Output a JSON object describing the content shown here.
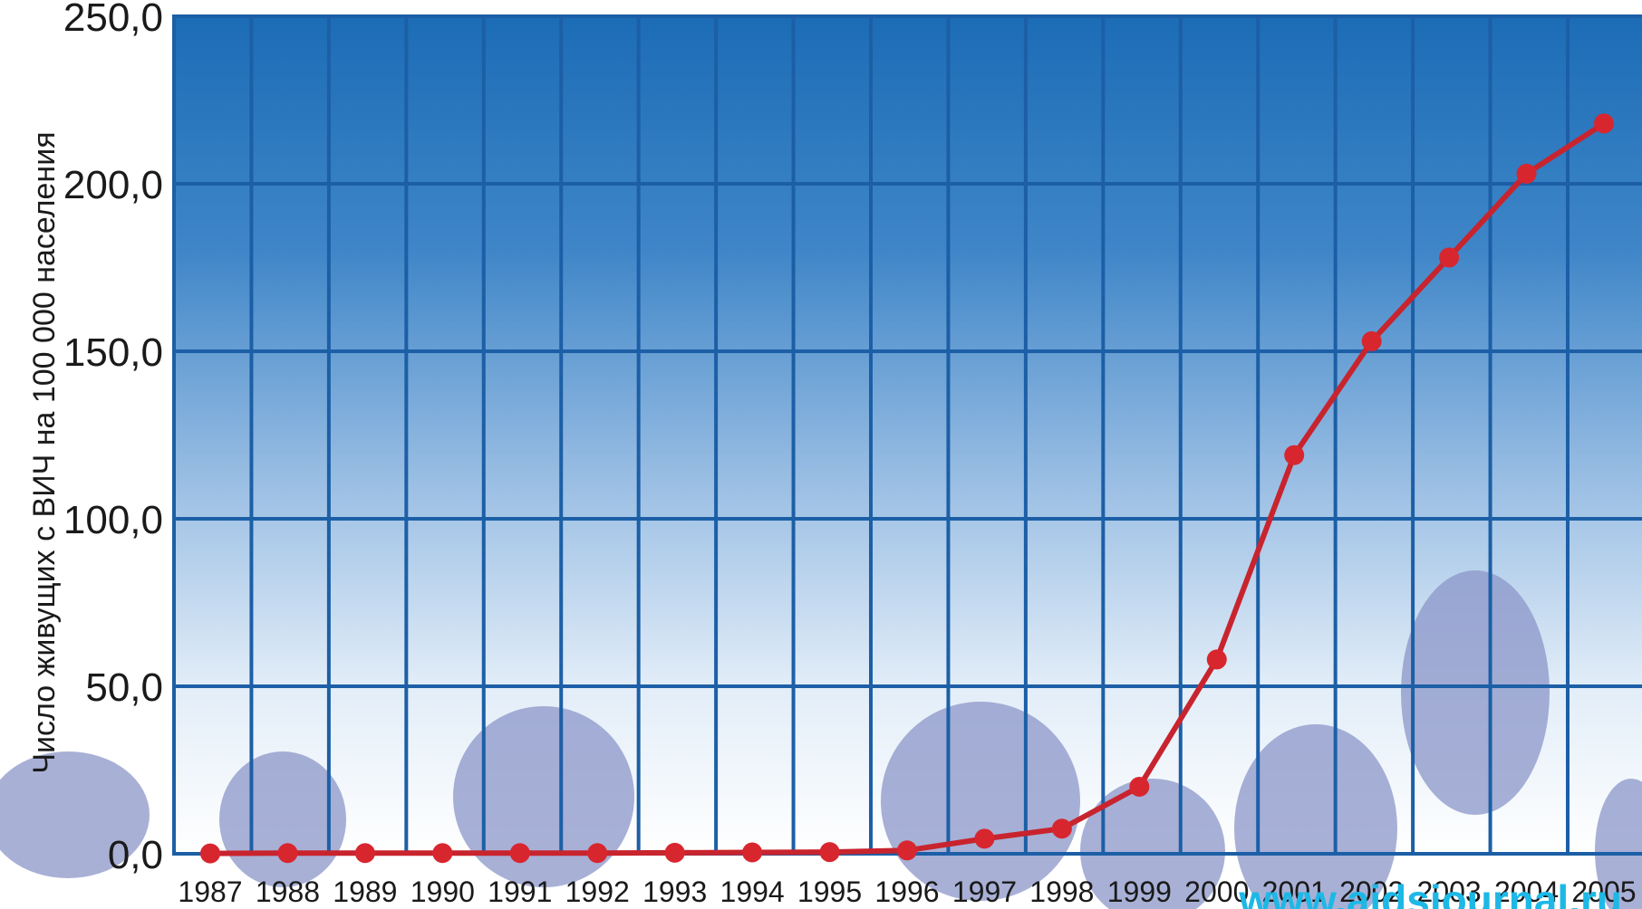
{
  "chart_data": {
    "type": "line",
    "title": "",
    "xlabel": "",
    "ylabel": "Число живущих с ВИЧ на 100 000 населения",
    "ylim": [
      0,
      250
    ],
    "yticks": [
      "0,0",
      "50,0",
      "100,0",
      "150,0",
      "200,0",
      "250,0"
    ],
    "categories": [
      "1987",
      "1988",
      "1989",
      "1990",
      "1991",
      "1992",
      "1993",
      "1994",
      "1995",
      "1996",
      "1997",
      "1998",
      "1999",
      "2000",
      "2001",
      "2002",
      "2003",
      "2004",
      "2005"
    ],
    "series": [
      {
        "values": [
          0.1,
          0.2,
          0.2,
          0.2,
          0.2,
          0.2,
          0.3,
          0.4,
          0.5,
          1.0,
          4.5,
          7.5,
          20.0,
          58.0,
          119.0,
          153.0,
          178.0,
          203.0,
          218.0
        ]
      }
    ],
    "grid": true,
    "legend": "none",
    "colors": {
      "line": "#c8242e",
      "marker": "#d8262f",
      "grid": "#1c5fa6",
      "bg_top": "#1f70b8",
      "bg_bottom": "#ffffff",
      "silhouette": "#8b96c8"
    }
  },
  "watermark": "www.aidsjournal.ru"
}
